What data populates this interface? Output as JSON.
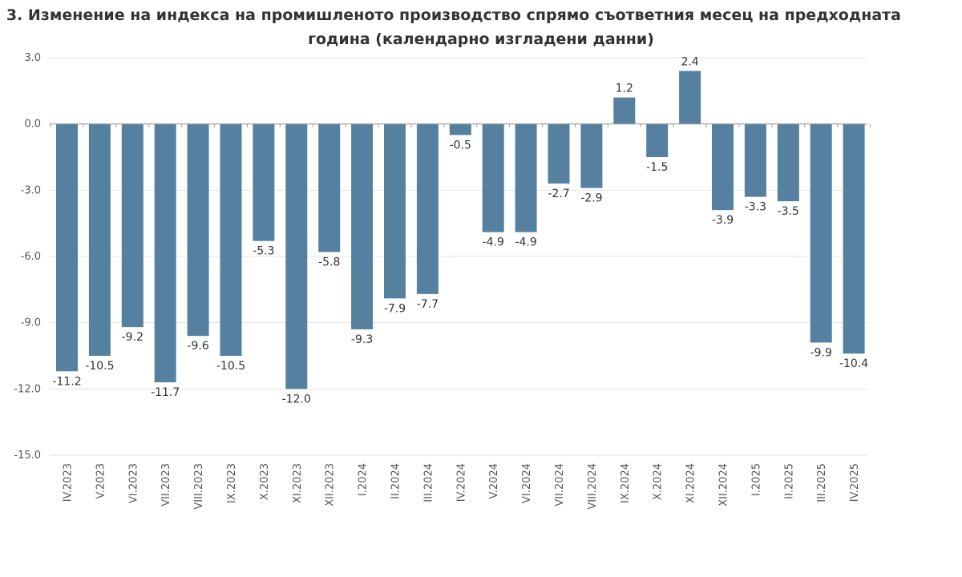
{
  "chart_data": {
    "type": "bar",
    "title_line1": ". 3. Изменение на индекса на промишленото производство спрямо съответния месец на предходната",
    "title_line2": "година (календарно изгладени данни)",
    "xlabel": "",
    "ylabel": "",
    "ylim": [
      -15,
      3
    ],
    "yticks": [
      "3.0",
      "0.0",
      "-3.0",
      "-6.0",
      "-9.0",
      "-12.0",
      "-15.0"
    ],
    "grid": true,
    "bar_color": "#5580a0",
    "categories": [
      "IV.2023",
      "V.2023",
      "VI.2023",
      "VII.2023",
      "VIII.2023",
      "IX.2023",
      "X.2023",
      "XI.2023",
      "XII.2023",
      "I.2024",
      "II.2024",
      "III.2024",
      "IV.2024",
      "V.2024",
      "VI.2024",
      "VII.2024",
      "VIII.2024",
      "IX.2024",
      "X.2024",
      "XI.2024",
      "XII.2024",
      "I.2025",
      "II.2025",
      "III.2025",
      "IV.2025"
    ],
    "values": [
      -11.2,
      -10.5,
      -9.2,
      -11.7,
      -9.6,
      -10.5,
      -5.3,
      -12.0,
      -5.8,
      -9.3,
      -7.9,
      -7.7,
      -0.5,
      -4.9,
      -4.9,
      -2.7,
      -2.9,
      1.2,
      -1.5,
      2.4,
      -3.9,
      -3.3,
      -3.5,
      -9.9,
      -10.4
    ],
    "labels": [
      "-11.2",
      "-10.5",
      "-9.2",
      "-11.7",
      "-9.6",
      "-10.5",
      "-5.3",
      "-12.0",
      "-5.8",
      "-9.3",
      "-7.9",
      "-7.7",
      "-0.5",
      "-4.9",
      "-4.9",
      "-2.7",
      "-2.9",
      "1.2",
      "-1.5",
      "2.4",
      "-3.9",
      "-3.3",
      "-3.5",
      "-9.9",
      "-10.4"
    ]
  }
}
